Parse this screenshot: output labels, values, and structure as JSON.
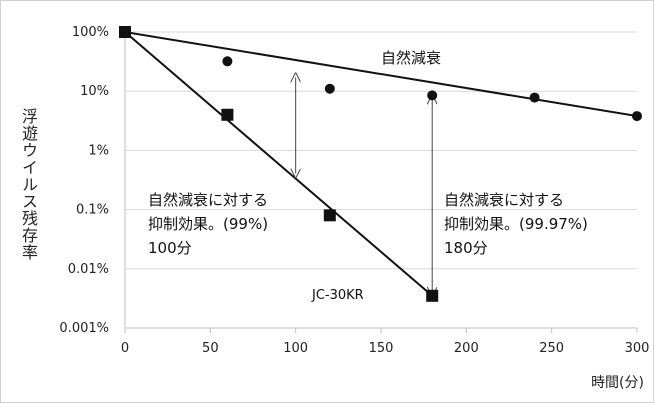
{
  "chart_data": {
    "type": "scatter",
    "ylabel": "浮遊ウイルス残存率",
    "xlabel": "時間(分)",
    "x_ticks": [
      "0",
      "50",
      "100",
      "150",
      "200",
      "250",
      "300"
    ],
    "y_ticks": [
      "100%",
      "10%",
      "1%",
      "0.1%",
      "0.01%",
      "0.001%"
    ],
    "xlim": [
      0,
      300
    ],
    "ylim_percent": [
      0.001,
      100
    ],
    "y_scale": "log",
    "grid": "horizontal",
    "series": [
      {
        "name": "自然減衰",
        "marker": "circle",
        "x": [
          0,
          60,
          120,
          180,
          240,
          300
        ],
        "y_percent": [
          100,
          32,
          11,
          8.5,
          7.8,
          3.8
        ],
        "trendline": {
          "x": [
            0,
            300
          ],
          "y_percent": [
            100,
            3.8
          ]
        }
      },
      {
        "name": "JC-30KR",
        "marker": "square",
        "x": [
          0,
          60,
          120,
          180
        ],
        "y_percent": [
          100,
          4,
          0.08,
          0.0035
        ],
        "trendline": {
          "x": [
            0,
            180
          ],
          "y_percent": [
            100,
            0.0035
          ]
        }
      }
    ],
    "annotations": [
      {
        "text": "自然減衰に対する\n抑制効果。(99%)\n100分",
        "x": 100,
        "from_percent": 20,
        "to_percent": 0.35
      },
      {
        "text": "自然減衰に対する\n抑制効果。(99.97%)\n180分",
        "x": 180,
        "from_percent": 8.5,
        "to_percent": 0.0035
      }
    ]
  },
  "colors": {
    "line": "#111111",
    "grid": "#d9d9d9",
    "axis": "#bfbfbf",
    "arrow": "#444444"
  }
}
